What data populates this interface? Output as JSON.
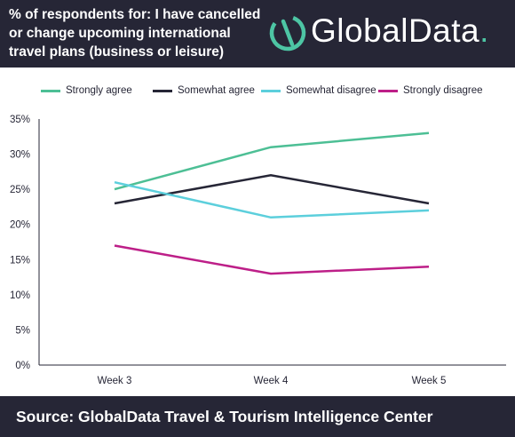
{
  "header": {
    "title": "% of respondents for:  I have cancelled or change upcoming international travel plans (business or leisure)",
    "brand": "GlobalData."
  },
  "footer": {
    "source": "Source: GlobalData Travel & Tourism Intelligence Center"
  },
  "colors": {
    "background_dark": "#262636",
    "brand_accent": "#4dc5a4"
  },
  "chart_data": {
    "type": "line",
    "title": "% of respondents for:  I have cancelled or change upcoming international travel plans (business or leisure)",
    "xlabel": "",
    "ylabel": "",
    "categories": [
      "Week 3",
      "Week 4",
      "Week 5"
    ],
    "y_ticks": [
      "0%",
      "5%",
      "10%",
      "15%",
      "20%",
      "25%",
      "30%",
      "35%"
    ],
    "ylim": [
      0,
      35
    ],
    "unit": "%",
    "grid": false,
    "legend_position": "top",
    "series": [
      {
        "name": "Strongly agree",
        "color": "#4dbf95",
        "values": [
          25,
          31,
          33
        ]
      },
      {
        "name": "Somewhat agree",
        "color": "#262636",
        "values": [
          23,
          27,
          23
        ]
      },
      {
        "name": "Somewhat disagree",
        "color": "#5ccfdc",
        "values": [
          26,
          21,
          22
        ]
      },
      {
        "name": "Strongly disagree",
        "color": "#bd1f88",
        "values": [
          17,
          13,
          14
        ]
      }
    ]
  }
}
